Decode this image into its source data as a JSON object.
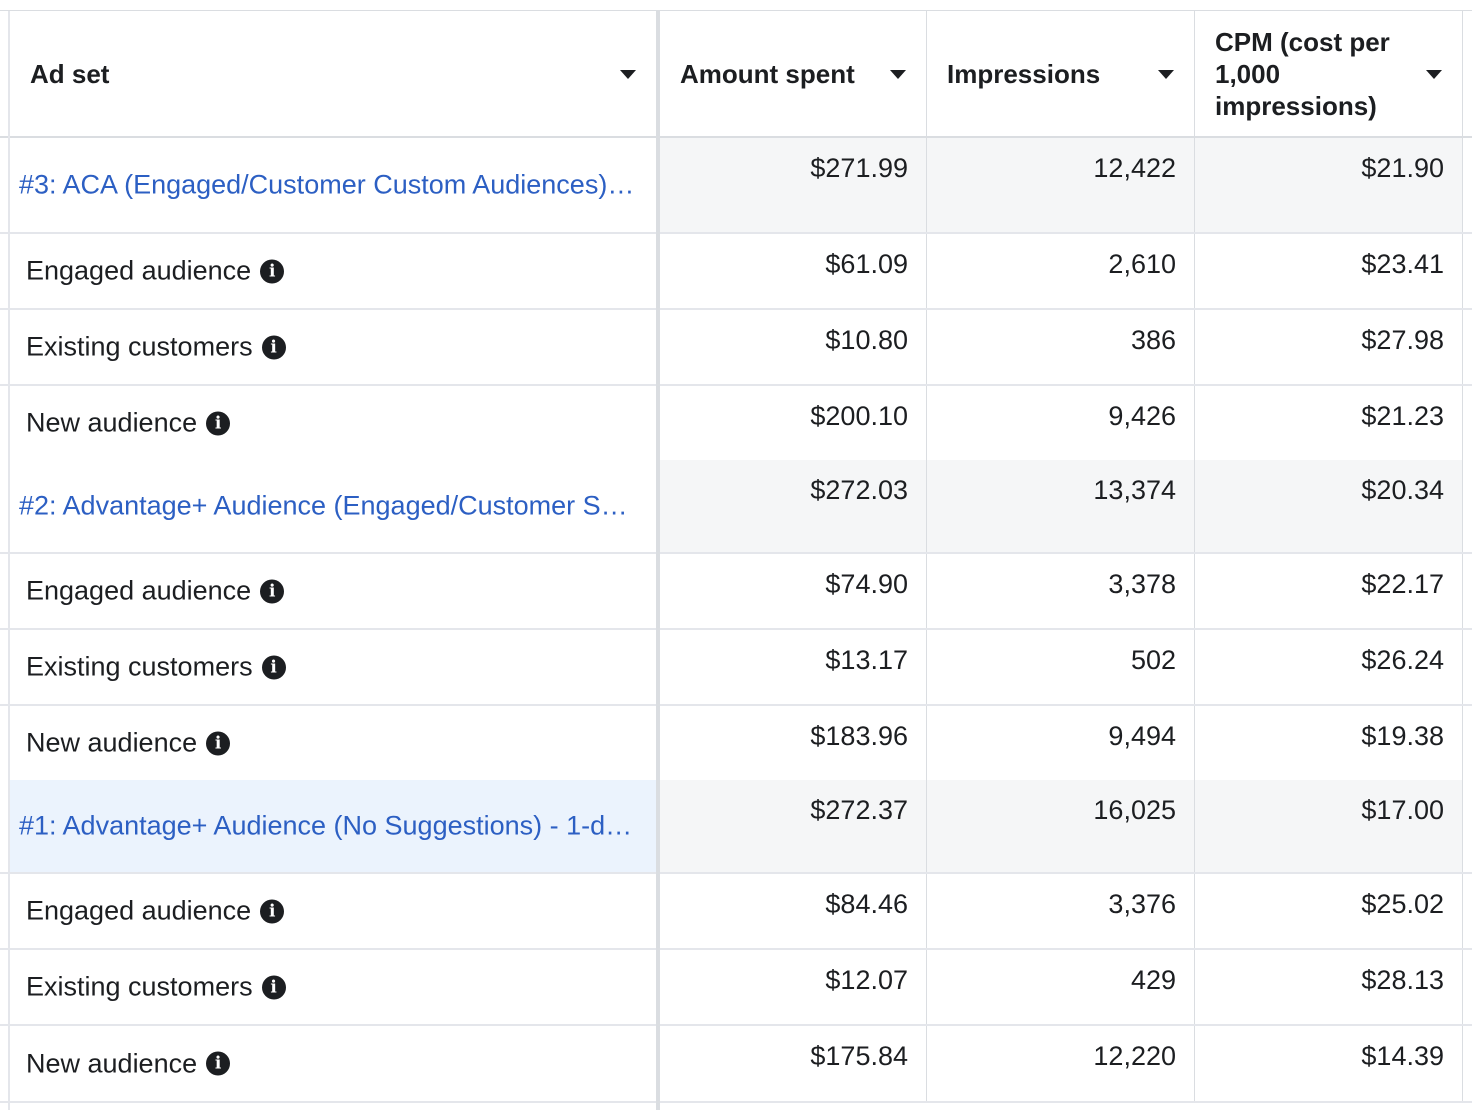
{
  "columns": [
    {
      "label": "Ad set"
    },
    {
      "label": "Amount spent"
    },
    {
      "label": "Impressions"
    },
    {
      "label": "CPM (cost per 1,000 impressions)"
    }
  ],
  "ad_sets": [
    {
      "name": "#3: ACA (Engaged/Customer Custom Audiences)…",
      "amount_spent": "$271.99",
      "impressions": "12,422",
      "cpm": "$21.90",
      "segments": [
        {
          "name": "Engaged audience",
          "amount_spent": "$61.09",
          "impressions": "2,610",
          "cpm": "$23.41"
        },
        {
          "name": "Existing customers",
          "amount_spent": "$10.80",
          "impressions": "386",
          "cpm": "$27.98"
        },
        {
          "name": "New audience",
          "amount_spent": "$200.10",
          "impressions": "9,426",
          "cpm": "$21.23"
        }
      ]
    },
    {
      "name": "#2: Advantage+ Audience (Engaged/Customer S…",
      "amount_spent": "$272.03",
      "impressions": "13,374",
      "cpm": "$20.34",
      "segments": [
        {
          "name": "Engaged audience",
          "amount_spent": "$74.90",
          "impressions": "3,378",
          "cpm": "$22.17"
        },
        {
          "name": "Existing customers",
          "amount_spent": "$13.17",
          "impressions": "502",
          "cpm": "$26.24"
        },
        {
          "name": "New audience",
          "amount_spent": "$183.96",
          "impressions": "9,494",
          "cpm": "$19.38"
        }
      ]
    },
    {
      "name": "#1: Advantage+ Audience (No Suggestions) - 1-d…",
      "amount_spent": "$272.37",
      "impressions": "16,025",
      "cpm": "$17.00",
      "segments": [
        {
          "name": "Engaged audience",
          "amount_spent": "$84.46",
          "impressions": "3,376",
          "cpm": "$25.02"
        },
        {
          "name": "Existing customers",
          "amount_spent": "$12.07",
          "impressions": "429",
          "cpm": "$28.13"
        },
        {
          "name": "New audience",
          "amount_spent": "$175.84",
          "impressions": "12,220",
          "cpm": "$14.39"
        }
      ]
    }
  ],
  "icons": {
    "info": "info-icon",
    "sort": "caret-down-icon"
  }
}
